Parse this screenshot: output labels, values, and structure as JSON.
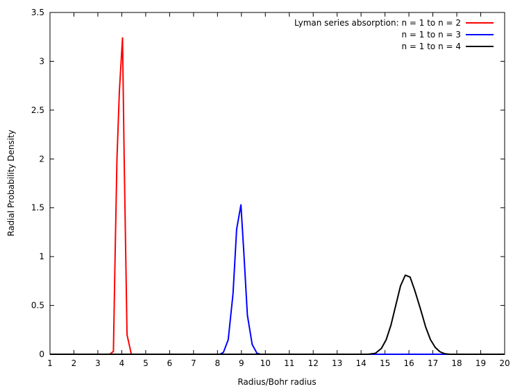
{
  "chart_data": {
    "type": "line",
    "title": "",
    "xlabel": "Radius/Bohr radius",
    "ylabel": "Radial Probability Density",
    "xlim": [
      1,
      20
    ],
    "ylim": [
      0,
      3.5
    ],
    "x_ticks": [
      1,
      2,
      3,
      4,
      5,
      6,
      7,
      8,
      9,
      10,
      11,
      12,
      13,
      14,
      15,
      16,
      17,
      18,
      19,
      20
    ],
    "y_ticks": [
      0,
      0.5,
      1,
      1.5,
      2,
      2.5,
      3,
      3.5
    ],
    "y_tick_labels": [
      "0",
      "0.5",
      "1",
      "1.5",
      "2",
      "2.5",
      "3",
      "3.5"
    ],
    "grid": false,
    "legend_position": "top-right",
    "series": [
      {
        "name": "Lyman series absorption: n = 1 to n = 2",
        "color": "#ff0000",
        "points": [
          [
            1,
            0
          ],
          [
            3.5,
            0
          ],
          [
            3.65,
            0.03
          ],
          [
            3.72,
            1.0
          ],
          [
            3.8,
            2.0
          ],
          [
            3.9,
            2.7
          ],
          [
            4.03,
            3.24
          ],
          [
            4.1,
            2.0
          ],
          [
            4.22,
            0.2
          ],
          [
            4.4,
            0
          ],
          [
            20,
            0
          ]
        ]
      },
      {
        "name": "n = 1 to n = 3",
        "color": "#0000ff",
        "points": [
          [
            1,
            0
          ],
          [
            8.1,
            0
          ],
          [
            8.25,
            0.02
          ],
          [
            8.45,
            0.15
          ],
          [
            8.65,
            0.62
          ],
          [
            8.8,
            1.28
          ],
          [
            8.98,
            1.53
          ],
          [
            9.1,
            1.05
          ],
          [
            9.25,
            0.4
          ],
          [
            9.45,
            0.1
          ],
          [
            9.65,
            0.01
          ],
          [
            9.8,
            0
          ],
          [
            20,
            0
          ]
        ]
      },
      {
        "name": "n = 1 to n = 4",
        "color": "#000000",
        "points": [
          [
            1,
            0
          ],
          [
            14.3,
            0
          ],
          [
            14.6,
            0.01
          ],
          [
            14.85,
            0.06
          ],
          [
            15.05,
            0.15
          ],
          [
            15.25,
            0.3
          ],
          [
            15.45,
            0.5
          ],
          [
            15.65,
            0.7
          ],
          [
            15.85,
            0.81
          ],
          [
            16.05,
            0.79
          ],
          [
            16.25,
            0.65
          ],
          [
            16.5,
            0.45
          ],
          [
            16.7,
            0.28
          ],
          [
            16.9,
            0.15
          ],
          [
            17.1,
            0.07
          ],
          [
            17.3,
            0.025
          ],
          [
            17.5,
            0.005
          ],
          [
            17.7,
            0
          ],
          [
            20,
            0
          ]
        ]
      }
    ]
  }
}
